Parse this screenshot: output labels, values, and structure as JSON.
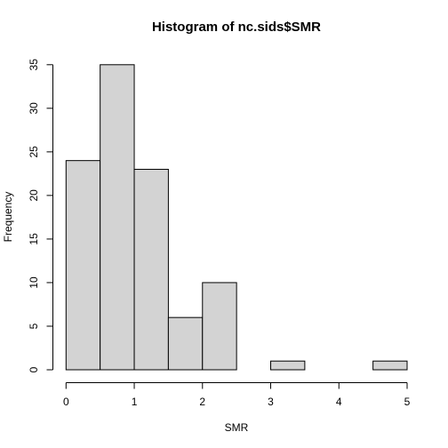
{
  "chart_data": {
    "type": "bar",
    "title": "Histogram of nc.sids$SMR",
    "xlabel": "SMR",
    "ylabel": "Frequency",
    "bins": [
      {
        "from": 0.0,
        "to": 0.5,
        "count": 24
      },
      {
        "from": 0.5,
        "to": 1.0,
        "count": 35
      },
      {
        "from": 1.0,
        "to": 1.5,
        "count": 23
      },
      {
        "from": 1.5,
        "to": 2.0,
        "count": 6
      },
      {
        "from": 2.0,
        "to": 2.5,
        "count": 10
      },
      {
        "from": 2.5,
        "to": 3.0,
        "count": 0
      },
      {
        "from": 3.0,
        "to": 3.5,
        "count": 1
      },
      {
        "from": 3.5,
        "to": 4.0,
        "count": 0
      },
      {
        "from": 4.0,
        "to": 4.5,
        "count": 0
      },
      {
        "from": 4.5,
        "to": 5.0,
        "count": 1
      }
    ],
    "xlim": [
      0,
      5
    ],
    "ylim": [
      0,
      35
    ],
    "x_ticks": [
      "0",
      "1",
      "2",
      "3",
      "4",
      "5"
    ],
    "y_ticks": [
      "0",
      "5",
      "10",
      "15",
      "20",
      "25",
      "30",
      "35"
    ],
    "bar_color": "#d3d3d3",
    "edge_color": "#000000",
    "grid": false,
    "legend": "none"
  }
}
